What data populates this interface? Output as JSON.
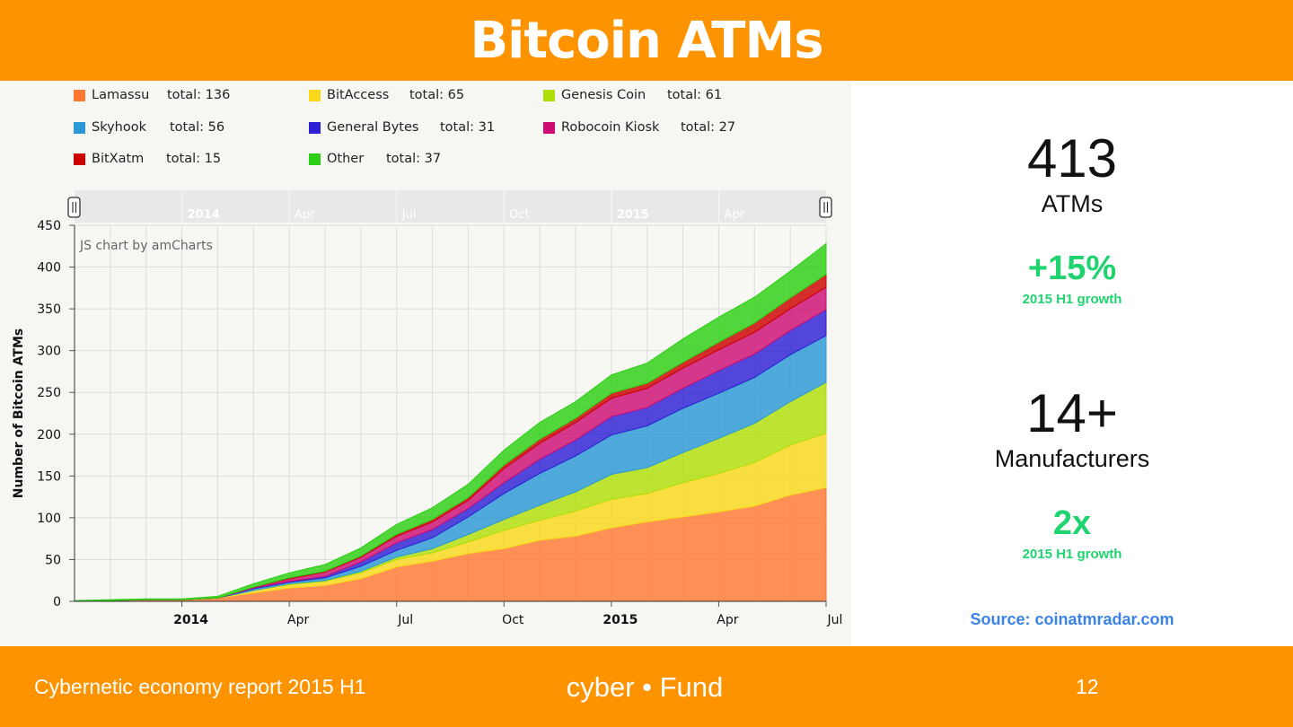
{
  "header": {
    "title": "Bitcoin ATMs"
  },
  "legend": [
    {
      "name": "Lamassu",
      "total": "total: 136",
      "color": "#ff7832"
    },
    {
      "name": "BitAccess",
      "total": "total: 65",
      "color": "#f9d81a"
    },
    {
      "name": "Genesis Coin",
      "total": "total: 61",
      "color": "#b0de09"
    },
    {
      "name": "Skyhook",
      "total": "total: 56",
      "color": "#2a99d6"
    },
    {
      "name": "General Bytes",
      "total": "total: 31",
      "color": "#2d20d4"
    },
    {
      "name": "Robocoin Kiosk",
      "total": "total: 27",
      "color": "#cd0d74"
    },
    {
      "name": "BitXatm",
      "total": "total: 15",
      "color": "#cc0000"
    },
    {
      "name": "Other",
      "total": "total: 37",
      "color": "#2ccf14"
    }
  ],
  "scrollbar": {
    "labels": [
      "2014",
      "Apr",
      "Jul",
      "Oct",
      "2015",
      "Apr"
    ]
  },
  "chart_data": {
    "type": "area",
    "stacked": true,
    "watermark": "JS chart by amCharts",
    "ylabel": "Number of Bitcoin ATMs",
    "xlabel": "",
    "ylim": [
      0,
      450
    ],
    "yticks": [
      0,
      50,
      100,
      150,
      200,
      250,
      300,
      350,
      400,
      450
    ],
    "xticks": [
      {
        "x": "2014-01",
        "label": "2014",
        "bold": true
      },
      {
        "x": "2014-04",
        "label": "Apr",
        "bold": false
      },
      {
        "x": "2014-07",
        "label": "Jul",
        "bold": false
      },
      {
        "x": "2014-10",
        "label": "Oct",
        "bold": false
      },
      {
        "x": "2015-01",
        "label": "2015",
        "bold": true
      },
      {
        "x": "2015-04",
        "label": "Apr",
        "bold": false
      },
      {
        "x": "2015-07",
        "label": "Jul",
        "bold": false
      }
    ],
    "grid": true,
    "legend_position": "top",
    "x": [
      "2013-10",
      "2013-11",
      "2013-12",
      "2014-01",
      "2014-02",
      "2014-03",
      "2014-04",
      "2014-05",
      "2014-06",
      "2014-07",
      "2014-08",
      "2014-09",
      "2014-10",
      "2014-11",
      "2014-12",
      "2015-01",
      "2015-02",
      "2015-03",
      "2015-04",
      "2015-05",
      "2015-06",
      "2015-07"
    ],
    "series": [
      {
        "name": "Lamassu",
        "color": "#ff7832",
        "values": [
          0,
          1,
          2,
          2,
          4,
          10,
          16,
          19,
          27,
          41,
          48,
          57,
          63,
          73,
          78,
          88,
          95,
          101,
          107,
          114,
          127,
          136
        ]
      },
      {
        "name": "BitAccess",
        "color": "#f9d81a",
        "values": [
          0,
          0,
          0,
          0,
          0,
          3,
          4,
          5,
          7,
          9,
          10,
          14,
          22,
          24,
          30,
          34,
          34,
          41,
          46,
          52,
          60,
          65
        ]
      },
      {
        "name": "Genesis Coin",
        "color": "#b0de09",
        "values": [
          0,
          0,
          0,
          0,
          0,
          0,
          1,
          1,
          2,
          3,
          5,
          9,
          13,
          18,
          23,
          30,
          31,
          36,
          42,
          47,
          52,
          61
        ]
      },
      {
        "name": "Skyhook",
        "color": "#2a99d6",
        "values": [
          0,
          0,
          0,
          0,
          0,
          2,
          2,
          3,
          6,
          8,
          13,
          21,
          31,
          38,
          43,
          47,
          50,
          53,
          54,
          55,
          56,
          56
        ]
      },
      {
        "name": "General Bytes",
        "color": "#2d20d4",
        "values": [
          0,
          0,
          0,
          0,
          0,
          1,
          1,
          2,
          5,
          9,
          10,
          10,
          13,
          17,
          19,
          22,
          22,
          24,
          27,
          28,
          29,
          31
        ]
      },
      {
        "name": "Robocoin Kiosk",
        "color": "#cd0d74",
        "values": [
          0,
          0,
          0,
          0,
          0,
          1,
          3,
          5,
          6,
          8,
          9,
          10,
          17,
          19,
          21,
          22,
          23,
          24,
          25,
          26,
          26,
          27
        ]
      },
      {
        "name": "BitXatm",
        "color": "#cc0000",
        "values": [
          0,
          0,
          0,
          0,
          0,
          0,
          1,
          1,
          1,
          2,
          3,
          3,
          4,
          5,
          5,
          6,
          6,
          7,
          9,
          11,
          13,
          15
        ]
      },
      {
        "name": "Other",
        "color": "#2ccf14",
        "values": [
          1,
          1,
          1,
          1,
          2,
          4,
          6,
          8,
          10,
          12,
          14,
          16,
          18,
          20,
          20,
          22,
          24,
          28,
          30,
          31,
          32,
          37
        ]
      }
    ]
  },
  "stats": {
    "atms_value": "413",
    "atms_label": "ATMs",
    "atms_growth": "+15%",
    "atms_growth_label": "2015 H1 growth",
    "manufacturers_value": "14+",
    "manufacturers_label": "Manufacturers",
    "manufacturers_growth": "2x",
    "manufacturers_growth_label": "2015 H1 growth",
    "source": "Source: coinatmradar.com"
  },
  "footer": {
    "report": "Cybernetic economy report 2015 H1",
    "brand": "cyber • Fund",
    "page": "12"
  }
}
